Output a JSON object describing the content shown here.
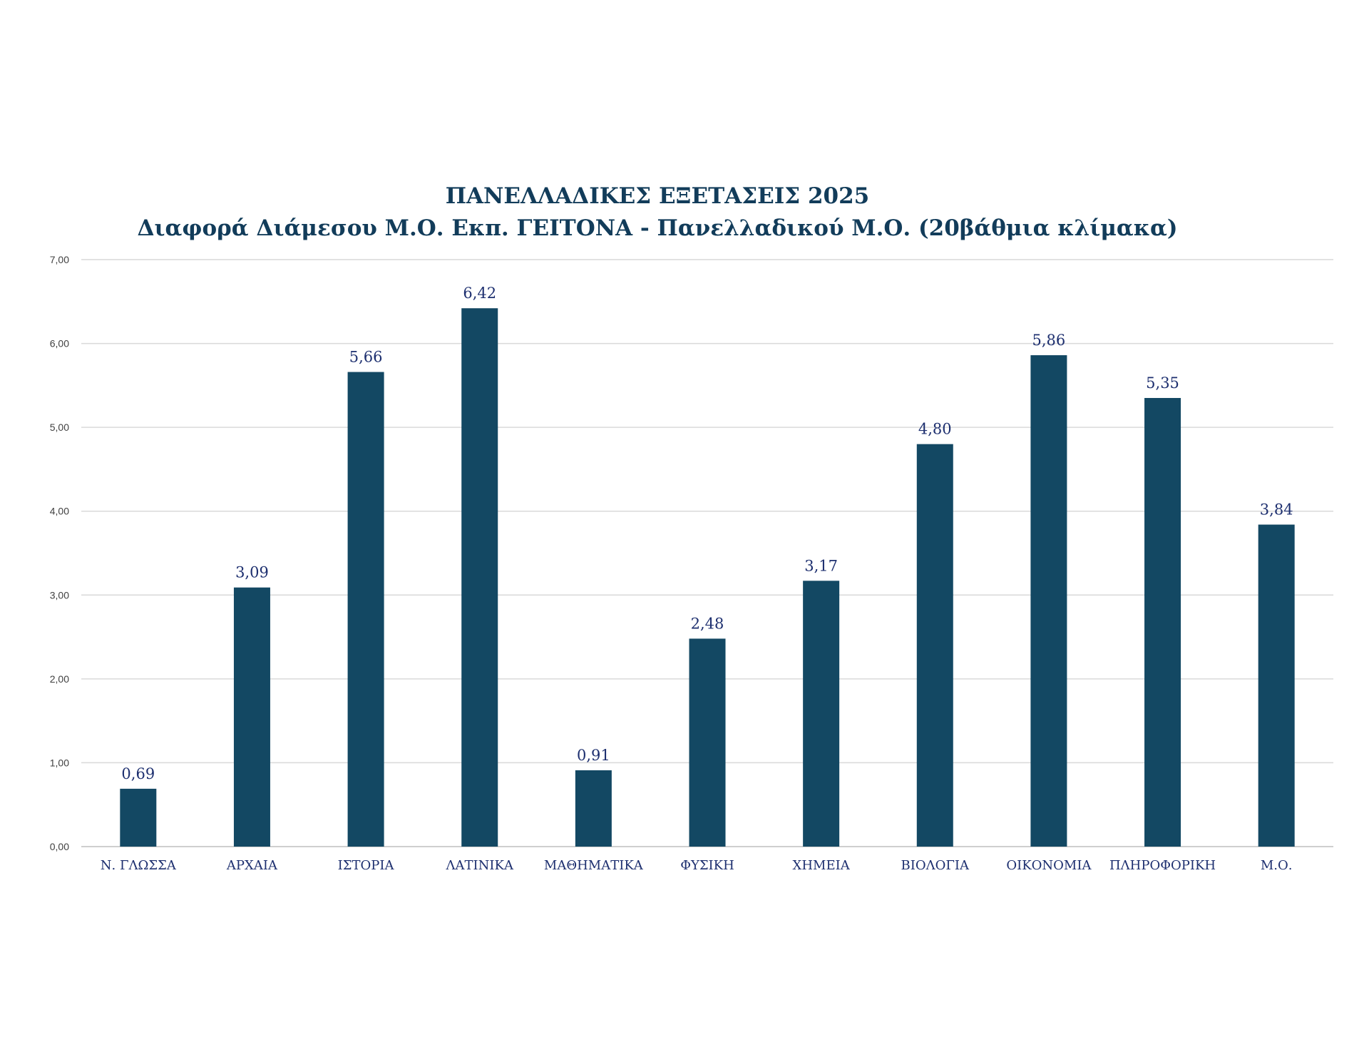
{
  "colors": {
    "bar": "#134863",
    "title": "#123c5a",
    "labels": "#1d2f6f",
    "gridline": "#d9d9d9",
    "axis": "#bfbfbf",
    "tick_text": "#404040"
  },
  "chart_data": {
    "type": "bar",
    "title": "ΠΑΝΕΛΛΑΔΙΚΕΣ ΕΞΕΤΑΣΕΙΣ 2025",
    "subtitle": "Διαφορά Διάμεσου Μ.Ο. Εκπ. ΓΕΙΤΟΝΑ - Πανελλαδικού Μ.Ο. (20βάθμια κλίμακα)",
    "xlabel": "",
    "ylabel": "",
    "ylim": [
      0,
      7
    ],
    "yticks": [
      "0,00",
      "1,00",
      "2,00",
      "3,00",
      "4,00",
      "5,00",
      "6,00",
      "7,00"
    ],
    "grid": true,
    "categories": [
      "Ν. ΓΛΩΣΣΑ",
      "ΑΡΧΑΙΑ",
      "ΙΣΤΟΡΙΑ",
      "ΛΑΤΙΝΙΚΑ",
      "ΜΑΘΗΜΑΤΙΚΑ",
      "ΦΥΣΙΚΗ",
      "ΧΗΜΕΙΑ",
      "ΒΙΟΛΟΓΙΑ",
      "ΟΙΚΟΝΟΜΙΑ",
      "ΠΛΗΡΟΦΟΡΙΚΗ",
      "Μ.Ο."
    ],
    "values": [
      0.69,
      3.09,
      5.66,
      6.42,
      0.91,
      2.48,
      3.17,
      4.8,
      5.86,
      5.35,
      3.84
    ],
    "data_labels": [
      "0,69",
      "3,09",
      "5,66",
      "6,42",
      "0,91",
      "2,48",
      "3,17",
      "4,80",
      "5,86",
      "5,35",
      "3,84"
    ]
  }
}
